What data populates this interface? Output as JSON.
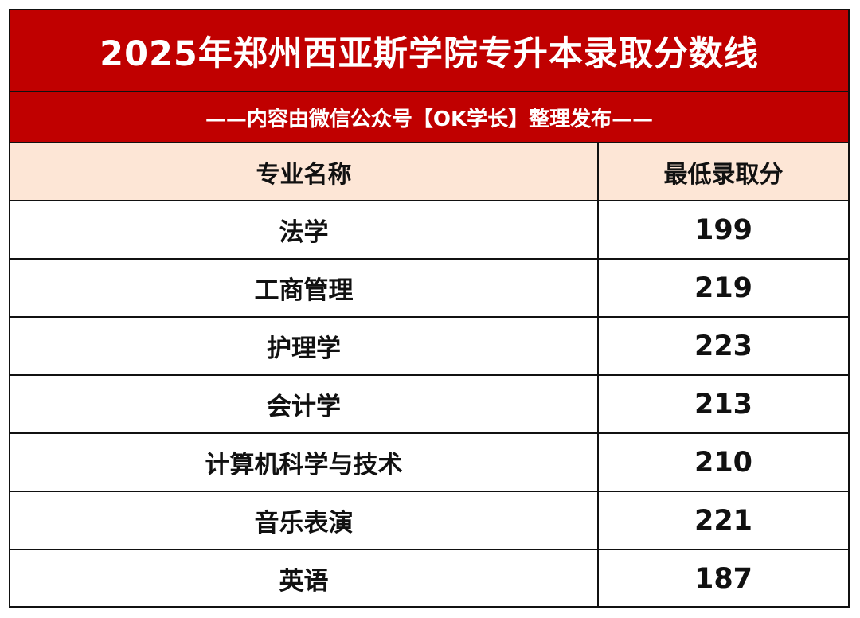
{
  "title": "2025年郑州西亚斯学院专升本录取分数线",
  "subtitle": "——内容由微信公众号【OK学长】整理发布——",
  "colors": {
    "header_red": "#c00000",
    "column_header_bg": "#fde6d6",
    "grid_line": "#111111"
  },
  "table": {
    "headers": [
      "专业名称",
      "最低录取分"
    ],
    "rows": [
      {
        "major": "法学",
        "score": "199"
      },
      {
        "major": "工商管理",
        "score": "219"
      },
      {
        "major": "护理学",
        "score": "223"
      },
      {
        "major": "会计学",
        "score": "213"
      },
      {
        "major": "计算机科学与技术",
        "score": "210"
      },
      {
        "major": "音乐表演",
        "score": "221"
      },
      {
        "major": "英语",
        "score": "187"
      }
    ]
  }
}
